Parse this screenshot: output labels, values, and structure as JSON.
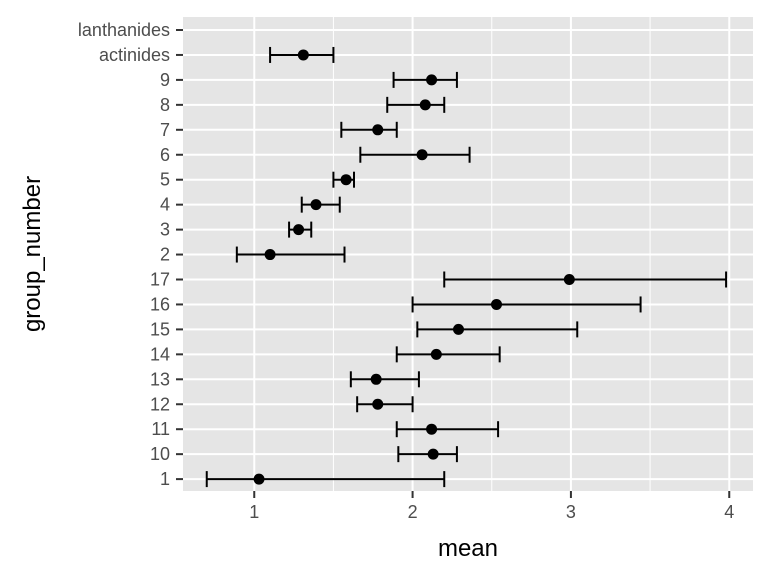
{
  "chart_data": {
    "type": "errorbar",
    "orientation": "horizontal",
    "xlabel": "mean",
    "ylabel": "group_number",
    "xlim": [
      0.55,
      4.15
    ],
    "x_ticks": [
      1,
      2,
      3,
      4
    ],
    "grid": true,
    "legend": "none",
    "colors": {
      "panel": "#e5e5e5",
      "grid": "#ffffff",
      "mark": "#000000",
      "tick_text": "#4d4d4d",
      "tick": "#333333"
    },
    "categories": [
      "lanthanides",
      "actinides",
      "9",
      "8",
      "7",
      "6",
      "5",
      "4",
      "3",
      "2",
      "17",
      "16",
      "15",
      "14",
      "13",
      "12",
      "11",
      "10",
      "1"
    ],
    "points": [
      {
        "category": "lanthanides",
        "mean": null,
        "lower": null,
        "upper": null
      },
      {
        "category": "actinides",
        "mean": 1.31,
        "lower": 1.1,
        "upper": 1.5
      },
      {
        "category": "9",
        "mean": 2.12,
        "lower": 1.88,
        "upper": 2.28
      },
      {
        "category": "8",
        "mean": 2.08,
        "lower": 1.84,
        "upper": 2.2
      },
      {
        "category": "7",
        "mean": 1.78,
        "lower": 1.55,
        "upper": 1.9
      },
      {
        "category": "6",
        "mean": 2.06,
        "lower": 1.67,
        "upper": 2.36
      },
      {
        "category": "5",
        "mean": 1.58,
        "lower": 1.5,
        "upper": 1.63
      },
      {
        "category": "4",
        "mean": 1.39,
        "lower": 1.3,
        "upper": 1.54
      },
      {
        "category": "3",
        "mean": 1.28,
        "lower": 1.22,
        "upper": 1.36
      },
      {
        "category": "2",
        "mean": 1.1,
        "lower": 0.89,
        "upper": 1.57
      },
      {
        "category": "17",
        "mean": 2.99,
        "lower": 2.2,
        "upper": 3.98
      },
      {
        "category": "16",
        "mean": 2.53,
        "lower": 2.0,
        "upper": 3.44
      },
      {
        "category": "15",
        "mean": 2.29,
        "lower": 2.03,
        "upper": 3.04
      },
      {
        "category": "14",
        "mean": 2.15,
        "lower": 1.9,
        "upper": 2.55
      },
      {
        "category": "13",
        "mean": 1.77,
        "lower": 1.61,
        "upper": 2.04
      },
      {
        "category": "12",
        "mean": 1.78,
        "lower": 1.65,
        "upper": 2.0
      },
      {
        "category": "11",
        "mean": 2.12,
        "lower": 1.9,
        "upper": 2.54
      },
      {
        "category": "10",
        "mean": 2.13,
        "lower": 1.91,
        "upper": 2.28
      },
      {
        "category": "1",
        "mean": 1.03,
        "lower": 0.7,
        "upper": 2.2
      }
    ]
  }
}
